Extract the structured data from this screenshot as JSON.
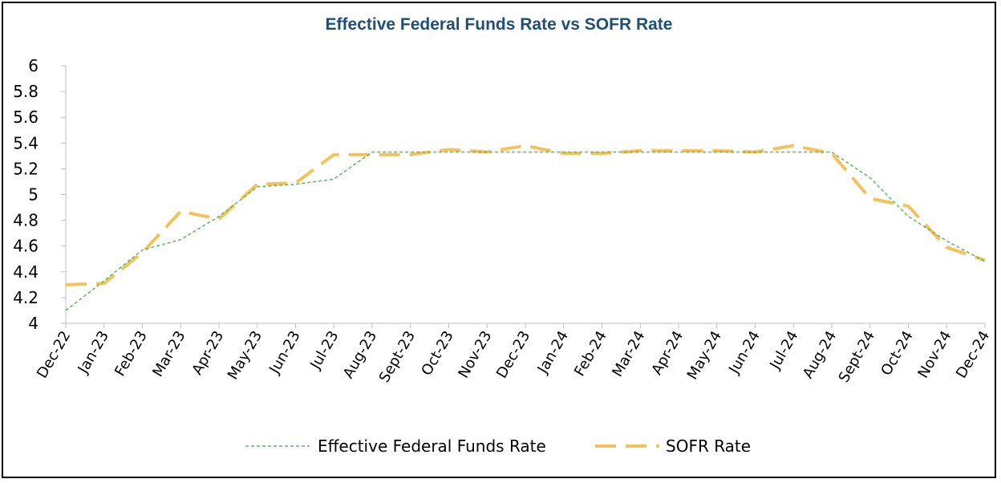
{
  "chart_data": {
    "type": "line",
    "title": "Effective Federal Funds Rate vs SOFR Rate",
    "title_color": "#1F4E79",
    "categories": [
      "Dec-22",
      "Jan-23",
      "Feb-23",
      "Mar-23",
      "Apr-23",
      "May-23",
      "Jun-23",
      "Jul-23",
      "Aug-23",
      "Sept-23",
      "Oct-23",
      "Nov-23",
      "Dec-23",
      "Jan-24",
      "Feb-24",
      "Mar-24",
      "Apr-24",
      "May-24",
      "Jun-24",
      "Jul-24",
      "Aug-24",
      "Sept-24",
      "Oct-24",
      "Nov-24",
      "Dec-24"
    ],
    "ylim": [
      4,
      6
    ],
    "yticks": [
      4,
      4.2,
      4.4,
      4.6,
      4.8,
      5,
      5.2,
      5.4,
      5.6,
      5.8,
      6
    ],
    "ytick_labels": [
      "4",
      "4.2",
      "4.4",
      "4.6",
      "4.8",
      "5",
      "5.2",
      "5.4",
      "5.6",
      "5.8",
      "6"
    ],
    "grid": false,
    "legend_position": "bottom",
    "series": [
      {
        "name": "Effective Federal Funds Rate",
        "color": "#5CB85C",
        "style": "dotted",
        "values": [
          4.1,
          4.33,
          4.57,
          4.65,
          4.83,
          5.06,
          5.08,
          5.12,
          5.33,
          5.33,
          5.33,
          5.33,
          5.33,
          5.33,
          5.33,
          5.33,
          5.33,
          5.33,
          5.33,
          5.33,
          5.33,
          5.13,
          4.83,
          4.64,
          4.48
        ]
      },
      {
        "name": "SOFR Rate",
        "color": "#F5C15A",
        "style": "dashed",
        "values": [
          4.3,
          4.31,
          4.55,
          4.87,
          4.81,
          5.08,
          5.09,
          5.31,
          5.31,
          5.31,
          5.35,
          5.33,
          5.38,
          5.32,
          5.32,
          5.34,
          5.34,
          5.34,
          5.33,
          5.38,
          5.32,
          4.97,
          4.91,
          4.59,
          4.49
        ]
      }
    ]
  }
}
